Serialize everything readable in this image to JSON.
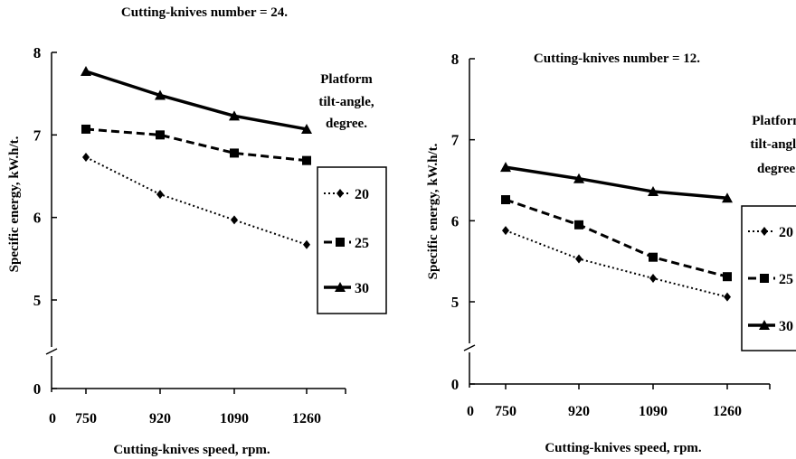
{
  "chart_data": [
    {
      "type": "line",
      "title": "Cutting-knives  number  = 24.",
      "xlabel": "Cutting-knives  speed, rpm.",
      "ylabel": "Specific  energy,  kW.h/t.",
      "x_origin_label": "0",
      "categories": [
        "750",
        "920",
        "1090",
        "1260"
      ],
      "y_ticks": [
        "0",
        "5",
        "6",
        "7",
        "8"
      ],
      "ylim": [
        5,
        8
      ],
      "axis_break": true,
      "legend_title": [
        "Platform",
        "tilt-angle,",
        "degree."
      ],
      "legend_position": "right",
      "series": [
        {
          "name": "20",
          "values": [
            6.73,
            6.28,
            5.97,
            5.67
          ],
          "style": "dotted",
          "marker": "diamond"
        },
        {
          "name": "25",
          "values": [
            7.07,
            7.0,
            6.78,
            6.69
          ],
          "style": "dashed",
          "marker": "square"
        },
        {
          "name": "30",
          "values": [
            7.77,
            7.48,
            7.23,
            7.07
          ],
          "style": "solid",
          "marker": "triangle"
        }
      ]
    },
    {
      "type": "line",
      "title": "Cutting-knives  number  = 12.",
      "xlabel": "Cutting-knives  speed, rpm.",
      "ylabel": "Specific  energy,  kW.h/t.",
      "x_origin_label": "0",
      "categories": [
        "750",
        "920",
        "1090",
        "1260"
      ],
      "y_ticks": [
        "0",
        "5",
        "6",
        "7",
        "8"
      ],
      "ylim": [
        5,
        8
      ],
      "axis_break": true,
      "legend_title": [
        "Platform",
        "tilt-angle,",
        "degree."
      ],
      "legend_position": "right",
      "series": [
        {
          "name": "20",
          "values": [
            5.88,
            5.53,
            5.29,
            5.06
          ],
          "style": "dotted",
          "marker": "diamond"
        },
        {
          "name": "25",
          "values": [
            6.26,
            5.95,
            5.55,
            5.31
          ],
          "style": "dashed",
          "marker": "square"
        },
        {
          "name": "30",
          "values": [
            6.66,
            6.52,
            6.36,
            6.28
          ],
          "style": "solid",
          "marker": "triangle"
        }
      ]
    }
  ]
}
